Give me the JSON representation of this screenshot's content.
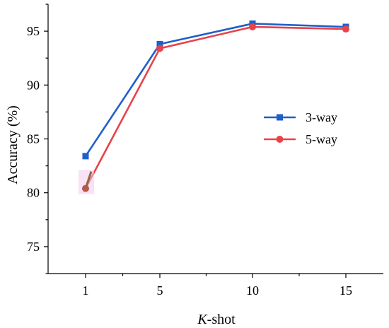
{
  "chart_data": {
    "type": "line",
    "xlabel_italic": "K",
    "xlabel_rest": "-shot",
    "ylabel": "Accuracy (%)",
    "categories": [
      "1",
      "5",
      "10",
      "15"
    ],
    "yticks": [
      "75",
      "80",
      "85",
      "90",
      "95"
    ],
    "ylim": [
      72.5,
      97.5
    ],
    "legend_position": "center-right",
    "grid": false,
    "series": [
      {
        "name": "3-way",
        "values": [
          83.4,
          93.8,
          95.7,
          95.4
        ],
        "color": "#1f5fc9",
        "marker": "square"
      },
      {
        "name": "5-way",
        "values": [
          80.4,
          93.4,
          95.4,
          95.2
        ],
        "color": "#e8424a",
        "marker": "circle"
      }
    ],
    "annotation_marker_color": "#f4c9ef"
  }
}
